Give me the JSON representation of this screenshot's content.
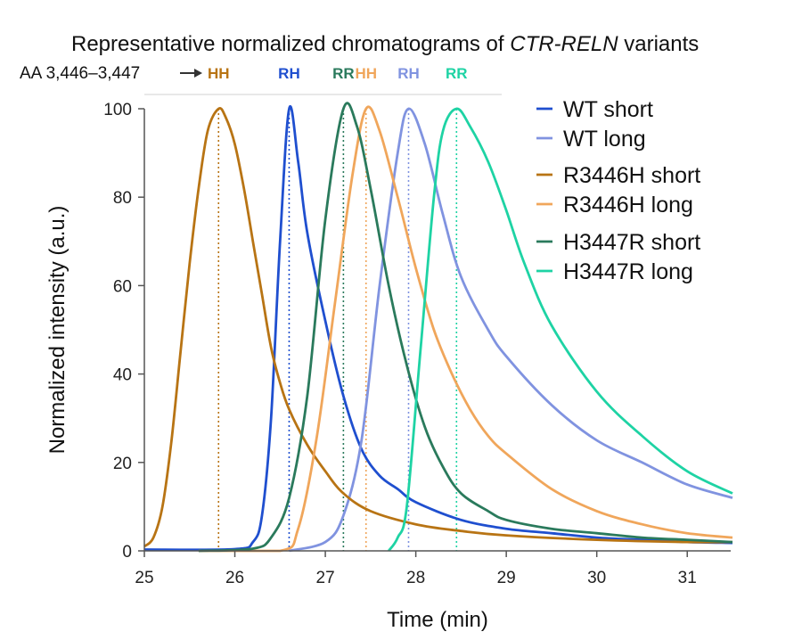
{
  "chart_data": {
    "type": "line",
    "title_prefix": "Representative normalized chromatograms of ",
    "title_italic": "CTR-RELN",
    "title_suffix": " variants",
    "xlabel": "Time (min)",
    "ylabel": "Normalized intensity (a.u.)",
    "xlim": [
      25,
      31.5
    ],
    "ylim": [
      0,
      100
    ],
    "xticks": [
      25,
      26,
      27,
      28,
      29,
      30,
      31
    ],
    "yticks": [
      0,
      20,
      40,
      60,
      80,
      100
    ],
    "aa_label": "AA 3,446–3,447",
    "series": [
      {
        "name": "WT short",
        "color": "#1f4fcf",
        "variant": "RH",
        "peak": 26.6,
        "points": [
          [
            25,
            0.3
          ],
          [
            26,
            0.4
          ],
          [
            26.2,
            2
          ],
          [
            26.3,
            8
          ],
          [
            26.4,
            30
          ],
          [
            26.5,
            70
          ],
          [
            26.6,
            100
          ],
          [
            26.7,
            88
          ],
          [
            26.8,
            72
          ],
          [
            27,
            52
          ],
          [
            27.2,
            35
          ],
          [
            27.4,
            23
          ],
          [
            27.6,
            17
          ],
          [
            27.8,
            14
          ],
          [
            28,
            11
          ],
          [
            28.5,
            7
          ],
          [
            29,
            5
          ],
          [
            29.5,
            4
          ],
          [
            30,
            3
          ],
          [
            30.5,
            2.5
          ],
          [
            31,
            2
          ],
          [
            31.5,
            1.8
          ]
        ]
      },
      {
        "name": "WT long",
        "color": "#8093e0",
        "variant": "RH",
        "peak": 27.92,
        "points": [
          [
            26.6,
            0
          ],
          [
            27,
            2
          ],
          [
            27.2,
            8
          ],
          [
            27.4,
            25
          ],
          [
            27.6,
            60
          ],
          [
            27.8,
            90
          ],
          [
            27.92,
            100
          ],
          [
            28.1,
            92
          ],
          [
            28.3,
            76
          ],
          [
            28.5,
            62
          ],
          [
            28.8,
            50
          ],
          [
            29,
            44
          ],
          [
            29.5,
            33
          ],
          [
            30,
            25
          ],
          [
            30.5,
            20
          ],
          [
            31,
            15
          ],
          [
            31.5,
            12
          ]
        ]
      },
      {
        "name": "R3446H short",
        "color": "#b87414",
        "variant": "HH",
        "peak": 25.82,
        "points": [
          [
            25,
            1
          ],
          [
            25.1,
            3
          ],
          [
            25.2,
            10
          ],
          [
            25.3,
            25
          ],
          [
            25.4,
            45
          ],
          [
            25.5,
            65
          ],
          [
            25.6,
            82
          ],
          [
            25.7,
            95
          ],
          [
            25.82,
            100
          ],
          [
            25.9,
            98
          ],
          [
            26,
            92
          ],
          [
            26.1,
            82
          ],
          [
            26.2,
            70
          ],
          [
            26.3,
            58
          ],
          [
            26.4,
            46
          ],
          [
            26.5,
            38
          ],
          [
            26.6,
            32
          ],
          [
            26.8,
            24
          ],
          [
            27,
            18
          ],
          [
            27.2,
            13
          ],
          [
            27.5,
            9
          ],
          [
            28,
            6
          ],
          [
            28.5,
            4.5
          ],
          [
            29,
            3.5
          ],
          [
            30,
            2.5
          ],
          [
            31,
            2
          ],
          [
            31.5,
            2
          ]
        ]
      },
      {
        "name": "R3446H long",
        "color": "#f0a65b",
        "variant": "HH",
        "peak": 27.45,
        "points": [
          [
            25.6,
            0
          ],
          [
            26.5,
            0
          ],
          [
            26.7,
            5
          ],
          [
            26.9,
            25
          ],
          [
            27.1,
            55
          ],
          [
            27.3,
            85
          ],
          [
            27.45,
            100
          ],
          [
            27.6,
            95
          ],
          [
            27.8,
            80
          ],
          [
            28,
            64
          ],
          [
            28.2,
            50
          ],
          [
            28.4,
            40
          ],
          [
            28.6,
            32
          ],
          [
            28.8,
            26
          ],
          [
            29,
            22
          ],
          [
            29.5,
            14
          ],
          [
            30,
            9
          ],
          [
            30.5,
            6
          ],
          [
            31,
            4
          ],
          [
            31.5,
            3
          ]
        ]
      },
      {
        "name": "H3447R short",
        "color": "#2a7a5c",
        "variant": "RR",
        "peak": 27.2,
        "points": [
          [
            25.6,
            0
          ],
          [
            26.2,
            0.5
          ],
          [
            26.4,
            3
          ],
          [
            26.6,
            12
          ],
          [
            26.8,
            35
          ],
          [
            27,
            75
          ],
          [
            27.2,
            100
          ],
          [
            27.35,
            96
          ],
          [
            27.5,
            82
          ],
          [
            27.7,
            60
          ],
          [
            27.9,
            42
          ],
          [
            28.1,
            28
          ],
          [
            28.3,
            19
          ],
          [
            28.5,
            13
          ],
          [
            28.8,
            9
          ],
          [
            29,
            7
          ],
          [
            29.5,
            5
          ],
          [
            30,
            4
          ],
          [
            30.5,
            3
          ],
          [
            31,
            2.5
          ],
          [
            31.5,
            2
          ]
        ]
      },
      {
        "name": "H3447R long",
        "color": "#1ed3a4",
        "variant": "RR",
        "peak": 28.45,
        "points": [
          [
            27.7,
            0
          ],
          [
            27.8,
            3
          ],
          [
            27.9,
            10
          ],
          [
            28.05,
            45
          ],
          [
            28.2,
            80
          ],
          [
            28.3,
            95
          ],
          [
            28.45,
            100
          ],
          [
            28.6,
            96
          ],
          [
            28.8,
            88
          ],
          [
            29,
            77
          ],
          [
            29.2,
            65
          ],
          [
            29.5,
            51
          ],
          [
            30,
            36
          ],
          [
            30.5,
            26
          ],
          [
            31,
            18
          ],
          [
            31.5,
            13
          ]
        ]
      }
    ]
  }
}
